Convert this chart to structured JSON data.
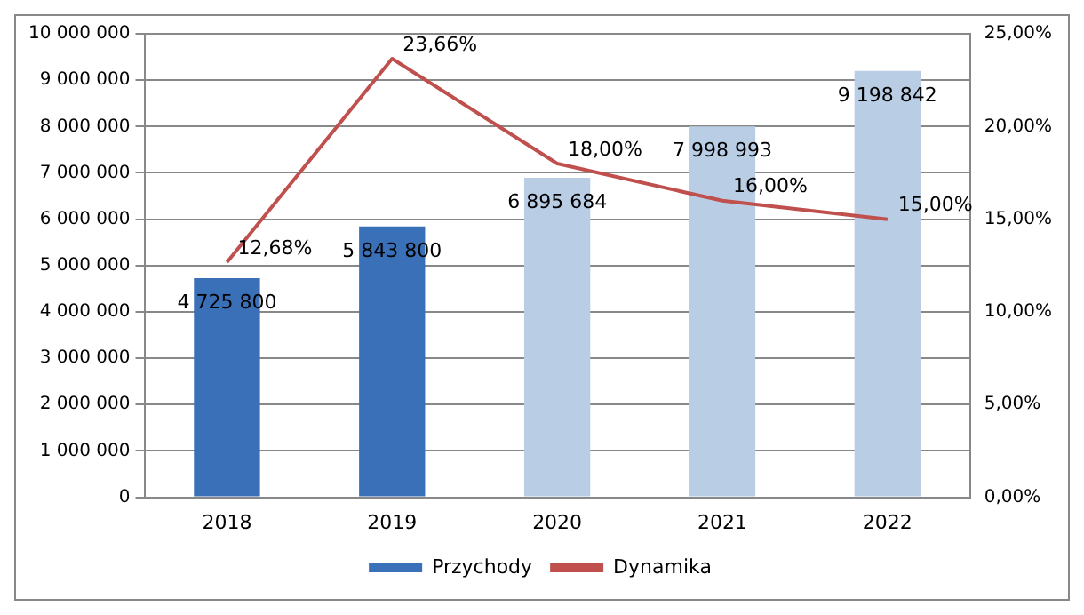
{
  "chart_data": {
    "type": "bar",
    "categories": [
      "2018",
      "2019",
      "2020",
      "2021",
      "2022"
    ],
    "series": [
      {
        "name": "Przychody",
        "colors": [
          "#3a70b8",
          "#3a70b8",
          "#b9cde5",
          "#b9cde5",
          "#b9cde5"
        ],
        "color": "#3a70b8",
        "values": [
          4725800,
          5843800,
          6895684,
          7998993,
          9198842
        ],
        "value_labels": [
          "4 725 800",
          "5 843 800",
          "6 895 684",
          "7 998 993",
          "9 198 842"
        ]
      },
      {
        "name": "Dynamika",
        "type": "line",
        "axis": "y2",
        "color": "#c0504d",
        "values": [
          12.68,
          23.66,
          18.0,
          16.0,
          15.0
        ],
        "value_labels": [
          "12,68%",
          "23,66%",
          "18,00%",
          "16,00%",
          "15,00%"
        ]
      }
    ],
    "ylim": [
      0,
      10000000
    ],
    "yticks": [
      {
        "value": 0,
        "label": "0"
      },
      {
        "value": 1000000,
        "label": "1 000 000"
      },
      {
        "value": 2000000,
        "label": "2 000 000"
      },
      {
        "value": 3000000,
        "label": "3 000 000"
      },
      {
        "value": 4000000,
        "label": "4 000 000"
      },
      {
        "value": 5000000,
        "label": "5 000 000"
      },
      {
        "value": 6000000,
        "label": "6 000 000"
      },
      {
        "value": 7000000,
        "label": "7 000 000"
      },
      {
        "value": 8000000,
        "label": "8 000 000"
      },
      {
        "value": 9000000,
        "label": "9 000 000"
      },
      {
        "value": 10000000,
        "label": "10 000 000"
      }
    ],
    "y2lim": [
      0,
      25
    ],
    "y2ticks": [
      {
        "value": 0,
        "label": "0,00%"
      },
      {
        "value": 5,
        "label": "5,00%"
      },
      {
        "value": 10,
        "label": "10,00%"
      },
      {
        "value": 15,
        "label": "15,00%"
      },
      {
        "value": 20,
        "label": "20,00%"
      },
      {
        "value": 25,
        "label": "25,00%"
      }
    ],
    "grid": "y",
    "legend": "bottom"
  }
}
